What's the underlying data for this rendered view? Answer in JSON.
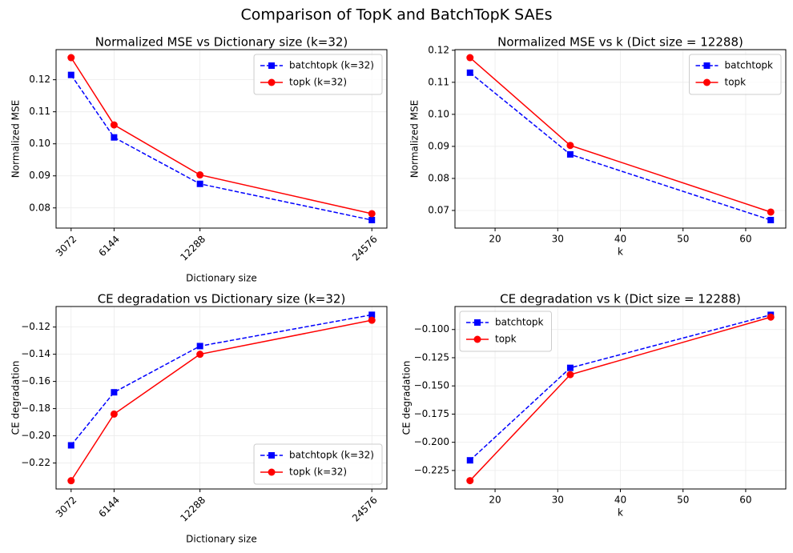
{
  "title": "Comparison of TopK and BatchTopK SAEs",
  "chart_data": [
    {
      "type": "line",
      "title": "Normalized MSE vs Dictionary size (k=32)",
      "xlabel": "Dictionary size",
      "ylabel": "Normalized MSE",
      "x": [
        3072,
        6144,
        12288,
        24576
      ],
      "xlim": [
        1997,
        25651
      ],
      "xticks": [
        3072,
        6144,
        12288,
        24576
      ],
      "xtick_rotation": 45,
      "ylim": [
        0.0737,
        0.1294
      ],
      "yticks": [
        0.08,
        0.09,
        {
          "value": 0.1,
          "label": "0.10"
        },
        0.11,
        0.12
      ],
      "grid": true,
      "legend_loc": "upper right",
      "series": [
        {
          "name": "batchtopk (k=32)",
          "color": "#0000ff",
          "linestyle": "dashed",
          "marker": "square",
          "values": [
            0.1215,
            0.102,
            0.0875,
            0.0762
          ]
        },
        {
          "name": "topk (k=32)",
          "color": "#ff0000",
          "linestyle": "solid",
          "marker": "circle",
          "values": [
            0.1269,
            0.1059,
            0.0903,
            0.0782
          ]
        }
      ]
    },
    {
      "type": "line",
      "title": "Normalized MSE vs k (Dict size = 12288)",
      "xlabel": "k",
      "ylabel": "Normalized MSE",
      "x": [
        16,
        32,
        64
      ],
      "xlim": [
        13.6,
        66.4
      ],
      "xticks": [
        20,
        30,
        40,
        50,
        60
      ],
      "xtick_rotation": 0,
      "ylim": [
        0.0645,
        0.1202
      ],
      "yticks": [
        0.07,
        0.08,
        0.09,
        {
          "value": 0.1,
          "label": "0.10"
        },
        0.11,
        0.12
      ],
      "grid": true,
      "legend_loc": "upper right",
      "series": [
        {
          "name": "batchtopk",
          "color": "#0000ff",
          "linestyle": "dashed",
          "marker": "square",
          "values": [
            0.113,
            0.0875,
            0.067
          ]
        },
        {
          "name": "topk",
          "color": "#ff0000",
          "linestyle": "solid",
          "marker": "circle",
          "values": [
            0.1177,
            0.0903,
            0.0695
          ]
        }
      ]
    },
    {
      "type": "line",
      "title": "CE degradation vs Dictionary size (k=32)",
      "xlabel": "Dictionary size",
      "ylabel": "CE degradation",
      "x": [
        3072,
        6144,
        12288,
        24576
      ],
      "xlim": [
        1997,
        25651
      ],
      "xticks": [
        3072,
        6144,
        12288,
        24576
      ],
      "xtick_rotation": 45,
      "ylim": [
        -0.2391,
        -0.1049
      ],
      "yticks": [
        {
          "value": -0.22,
          "label": "−0.22"
        },
        {
          "value": -0.2,
          "label": "−0.20"
        },
        {
          "value": -0.18,
          "label": "−0.18"
        },
        {
          "value": -0.16,
          "label": "−0.16"
        },
        {
          "value": -0.14,
          "label": "−0.14"
        },
        {
          "value": -0.12,
          "label": "−0.12"
        }
      ],
      "grid": true,
      "legend_loc": "lower right",
      "series": [
        {
          "name": "batchtopk (k=32)",
          "color": "#0000ff",
          "linestyle": "dashed",
          "marker": "square",
          "values": [
            -0.207,
            -0.168,
            -0.134,
            -0.111
          ]
        },
        {
          "name": "topk (k=32)",
          "color": "#ff0000",
          "linestyle": "solid",
          "marker": "circle",
          "values": [
            -0.233,
            -0.184,
            -0.14,
            -0.115
          ]
        }
      ]
    },
    {
      "type": "line",
      "title": "CE degradation vs k (Dict size = 12288)",
      "xlabel": "k",
      "ylabel": "CE degradation",
      "x": [
        16,
        32,
        64
      ],
      "xlim": [
        13.6,
        66.4
      ],
      "xticks": [
        20,
        30,
        40,
        50,
        60
      ],
      "xtick_rotation": 0,
      "ylim": [
        -0.2414,
        -0.0796
      ],
      "yticks": [
        {
          "value": -0.225,
          "label": "−0.225"
        },
        {
          "value": -0.2,
          "label": "−0.200"
        },
        {
          "value": -0.175,
          "label": "−0.175"
        },
        {
          "value": -0.15,
          "label": "−0.150"
        },
        {
          "value": -0.125,
          "label": "−0.125"
        },
        {
          "value": -0.1,
          "label": "−0.100"
        }
      ],
      "grid": true,
      "legend_loc": "upper left",
      "series": [
        {
          "name": "batchtopk",
          "color": "#0000ff",
          "linestyle": "dashed",
          "marker": "square",
          "values": [
            -0.216,
            -0.134,
            -0.087
          ]
        },
        {
          "name": "topk",
          "color": "#ff0000",
          "linestyle": "solid",
          "marker": "circle",
          "values": [
            -0.234,
            -0.14,
            -0.089
          ]
        }
      ]
    }
  ]
}
